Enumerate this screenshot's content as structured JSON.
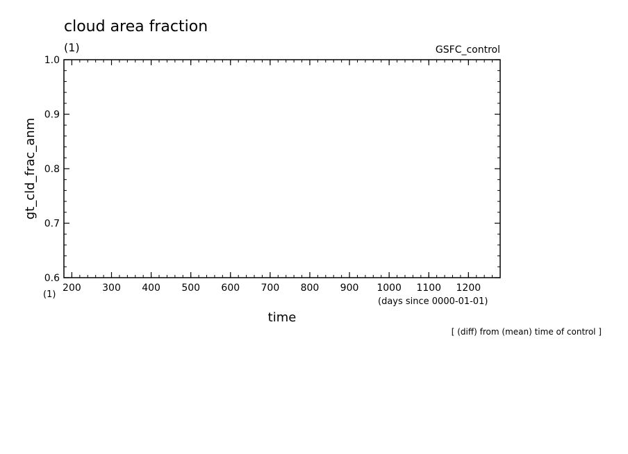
{
  "chart_data": {
    "type": "line",
    "title": "cloud area fraction",
    "title_unit": "(1)",
    "dataset_label": "GSFC_control",
    "ylabel": "gt_cld_frac_anm",
    "yunit": "(1)",
    "xlabel": "time",
    "xunit": "(days since 0000-01-01)",
    "note": "[ (diff) from (mean) time of control ]",
    "xlim": [
      180,
      1280
    ],
    "ylim": [
      0.6,
      1.0
    ],
    "xticks": [
      200,
      300,
      400,
      500,
      600,
      700,
      800,
      900,
      1000,
      1100,
      1200
    ],
    "xtick_labels": [
      "200",
      "300",
      "400",
      "500",
      "600",
      "700",
      "800",
      "900",
      "1000",
      "1100",
      "1200"
    ],
    "yticks": [
      0.6,
      0.7,
      0.8,
      0.9,
      1.0
    ],
    "ytick_labels": [
      "0.6",
      "0.7",
      "0.8",
      "0.9",
      "1.0"
    ],
    "series": [],
    "grid": false,
    "legend": false
  }
}
